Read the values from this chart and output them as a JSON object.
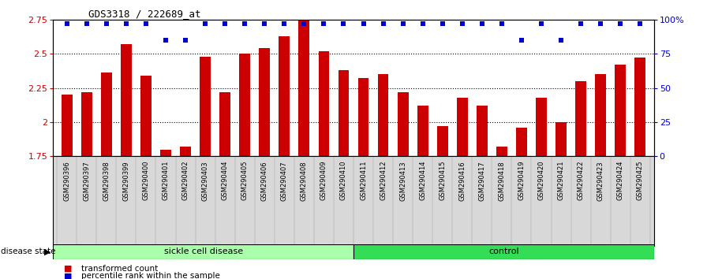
{
  "title": "GDS3318 / 222689_at",
  "samples": [
    "GSM290396",
    "GSM290397",
    "GSM290398",
    "GSM290399",
    "GSM290400",
    "GSM290401",
    "GSM290402",
    "GSM290403",
    "GSM290404",
    "GSM290405",
    "GSM290406",
    "GSM290407",
    "GSM290408",
    "GSM290409",
    "GSM290410",
    "GSM290411",
    "GSM290412",
    "GSM290413",
    "GSM290414",
    "GSM290415",
    "GSM290416",
    "GSM290417",
    "GSM290418",
    "GSM290419",
    "GSM290420",
    "GSM290421",
    "GSM290422",
    "GSM290423",
    "GSM290424",
    "GSM290425"
  ],
  "bar_values": [
    2.2,
    2.22,
    2.36,
    2.57,
    2.34,
    1.8,
    1.82,
    2.48,
    2.22,
    2.5,
    2.54,
    2.63,
    2.8,
    2.52,
    2.38,
    2.32,
    2.35,
    2.22,
    2.12,
    1.97,
    2.18,
    2.12,
    1.82,
    1.96,
    2.18,
    2.0,
    2.3,
    2.35,
    2.42,
    2.47
  ],
  "percentile_values": [
    97,
    97,
    97,
    97,
    97,
    85,
    85,
    97,
    97,
    97,
    97,
    97,
    97,
    97,
    97,
    97,
    97,
    97,
    97,
    97,
    97,
    97,
    97,
    85,
    97,
    85,
    97,
    97,
    97,
    97
  ],
  "sickle_cell_count": 15,
  "control_count": 15,
  "ylim_left": [
    1.75,
    2.75
  ],
  "ylim_right": [
    0,
    100
  ],
  "bar_color": "#CC0000",
  "dot_color": "#0000CC",
  "sickle_color": "#AAFFAA",
  "control_color": "#33DD55",
  "label_color_left": "#CC0000",
  "label_color_right": "#0000CC",
  "grid_color": "#000000",
  "background_color": "#FFFFFF",
  "plot_bg_color": "#D8D8D8"
}
